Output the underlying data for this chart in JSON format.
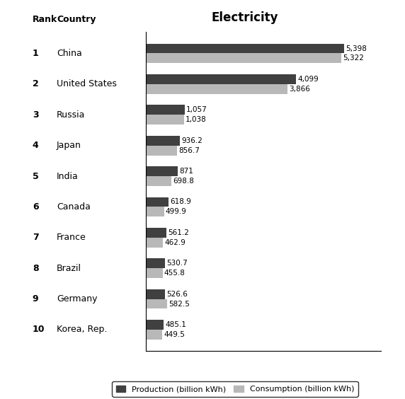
{
  "ranks": [
    1,
    2,
    3,
    4,
    5,
    6,
    7,
    8,
    9,
    10
  ],
  "countries": [
    "China",
    "United States",
    "Russia",
    "Japan",
    "India",
    "Canada",
    "France",
    "Brazil",
    "Germany",
    "Korea, Rep."
  ],
  "production": [
    5398,
    4099,
    1057,
    936.2,
    871,
    618.9,
    561.2,
    530.7,
    526.6,
    485.1
  ],
  "consumption": [
    5322,
    3866,
    1038,
    856.7,
    698.8,
    499.9,
    462.9,
    455.8,
    582.5,
    449.5
  ],
  "production_color": "#404040",
  "consumption_color": "#b8b8b8",
  "title": "Electricity",
  "legend_prod": "Production (billion kWh)",
  "legend_cons": "Consumption (billion kWh)",
  "background_color": "#ffffff",
  "bar_height": 0.32,
  "xlim": [
    0,
    6400
  ],
  "figsize": [
    5.72,
    5.64
  ],
  "dpi": 100
}
